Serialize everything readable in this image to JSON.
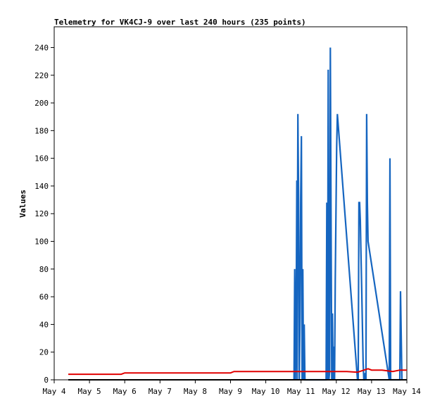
{
  "chart_data": {
    "type": "line",
    "title": "Telemetry for VK4CJ-9 over last 240 hours (235 points)",
    "xlabel": "",
    "ylabel": "Values",
    "ylim": [
      0,
      255
    ],
    "xlim": [
      4.0,
      14.0
    ],
    "x_ticks": [
      {
        "x": 4,
        "label": "May 4"
      },
      {
        "x": 5,
        "label": "May 5"
      },
      {
        "x": 6,
        "label": "May 6"
      },
      {
        "x": 7,
        "label": "May 7"
      },
      {
        "x": 8,
        "label": "May 8"
      },
      {
        "x": 9,
        "label": "May 9"
      },
      {
        "x": 10,
        "label": "May 10"
      },
      {
        "x": 11,
        "label": "May 11"
      },
      {
        "x": 12,
        "label": "May 12"
      },
      {
        "x": 13,
        "label": "May 13"
      },
      {
        "x": 14,
        "label": "May 14"
      }
    ],
    "y_ticks": [
      0,
      20,
      40,
      60,
      80,
      100,
      120,
      140,
      160,
      180,
      200,
      220,
      240
    ],
    "grid": false,
    "colors": {
      "series_blue": "#1565c0",
      "series_red": "#e00000",
      "series_black": "#000000"
    },
    "series": [
      {
        "color": "#1565c0",
        "x": [
          10.8,
          10.82,
          10.84,
          10.86,
          10.88,
          10.89,
          10.9,
          10.91,
          10.93,
          10.95,
          10.97,
          10.99,
          11.01,
          11.03,
          11.05,
          11.07,
          11.09,
          11.11,
          11.13,
          11.71,
          11.73,
          11.75,
          11.77,
          11.79,
          11.81,
          11.83,
          11.85,
          11.87,
          11.89,
          11.91,
          11.93,
          11.95,
          11.97,
          11.99,
          12.01,
          12.03,
          12.6,
          12.62,
          12.64,
          12.66,
          12.68,
          12.7,
          12.72,
          12.74,
          12.76,
          12.78,
          12.8,
          12.82,
          12.84,
          12.86,
          12.88,
          12.9,
          13.5,
          13.52,
          13.54,
          13.8,
          13.82,
          13.84,
          13.86
        ],
        "y": [
          0,
          80,
          0,
          35,
          144,
          0,
          120,
          192,
          128,
          0,
          45,
          132,
          176,
          0,
          80,
          0,
          40,
          0,
          0,
          0,
          128,
          0,
          224,
          0,
          6,
          240,
          120,
          0,
          48,
          0,
          24,
          0,
          72,
          120,
          168,
          192,
          0,
          0,
          128,
          128,
          115,
          89,
          65,
          38,
          12,
          0,
          0,
          5,
          0,
          192,
          128,
          100,
          0,
          160,
          0,
          0,
          64,
          32,
          0
        ]
      },
      {
        "color": "#e00000",
        "x": [
          4.4,
          5.0,
          5.5,
          5.9,
          6.0,
          7.0,
          8.0,
          9.0,
          9.1,
          10.0,
          10.8,
          11.0,
          11.5,
          11.8,
          12.0,
          12.3,
          12.6,
          12.9,
          13.0,
          13.3,
          13.6,
          13.8,
          14.0
        ],
        "y": [
          4,
          4,
          4,
          4,
          5,
          5,
          5,
          5,
          6,
          6,
          6,
          6,
          6,
          6,
          6,
          6,
          5.5,
          8,
          7,
          7,
          6,
          7,
          7
        ]
      },
      {
        "color": "#000000",
        "x": [
          4.4,
          14.0
        ],
        "y": [
          0,
          0
        ]
      }
    ]
  }
}
